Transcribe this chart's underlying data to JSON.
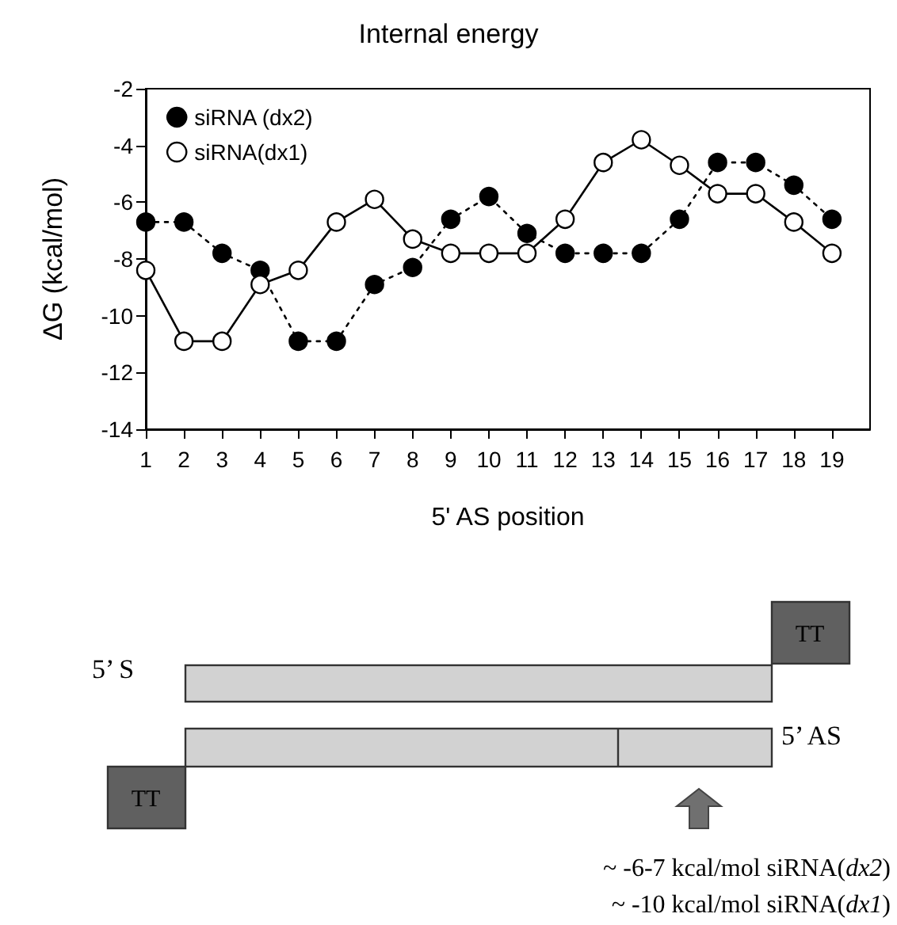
{
  "chart_data": {
    "type": "line",
    "title": "Internal energy",
    "xlabel": "5' AS position",
    "ylabel": "ΔG (kcal/mol)",
    "x": [
      1,
      2,
      3,
      4,
      5,
      6,
      7,
      8,
      9,
      10,
      11,
      12,
      13,
      14,
      15,
      16,
      17,
      18,
      19
    ],
    "series": [
      {
        "name": "siRNA (dx2)",
        "color": "#000000",
        "marker": "circle",
        "line_style": "dotted",
        "values": [
          -6.7,
          -6.7,
          -7.8,
          -8.4,
          -10.9,
          -10.9,
          -8.9,
          -8.3,
          -6.6,
          -5.8,
          -7.1,
          -7.8,
          -7.8,
          -7.8,
          -6.6,
          -4.6,
          -4.6,
          -5.4,
          -6.6
        ]
      },
      {
        "name": "siRNA(dx1)",
        "color": "#000000",
        "marker": "open_circle",
        "line_style": "solid",
        "values": [
          -8.4,
          -10.9,
          -10.9,
          -8.9,
          -8.4,
          -6.7,
          -5.9,
          -7.3,
          -7.8,
          -7.8,
          -7.8,
          -6.6,
          -4.6,
          -3.8,
          -4.7,
          -5.7,
          -5.7,
          -6.7,
          -7.8
        ]
      }
    ],
    "xlim": [
      1,
      20
    ],
    "xticks": [
      1,
      2,
      3,
      4,
      5,
      6,
      7,
      8,
      9,
      10,
      11,
      12,
      13,
      14,
      15,
      16,
      17,
      18,
      19
    ],
    "ylim": [
      -14,
      -2
    ],
    "yticks": [
      -14,
      -12,
      -10,
      -8,
      -6,
      -4,
      -2
    ],
    "grid": false,
    "legend": "top left",
    "annotations": [
      "5’ S",
      "5’ AS",
      "TT",
      "TT",
      "~ -6-7 kcal/mol siRNA(dx2)",
      "~ -10  kcal/mol siRNA(dx1)"
    ]
  }
}
